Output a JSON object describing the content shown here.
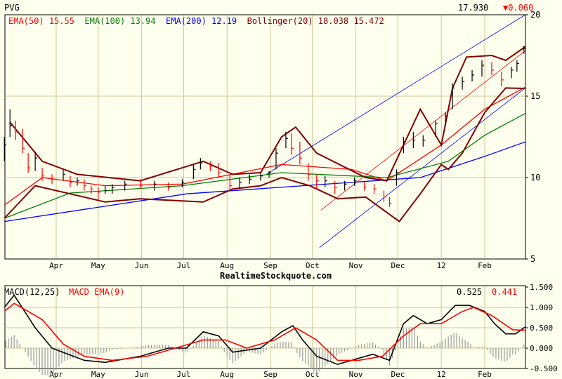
{
  "header": {
    "symbol": "PVG",
    "last_price": "17.930",
    "change": "▼0.060",
    "change_color": "#ff0000"
  },
  "legend": {
    "ema50_label": "EMA(50)",
    "ema50_value": "15.55",
    "ema100_label": "EMA(100)",
    "ema100_value": "13.94",
    "ema200_label": "EMA(200)",
    "ema200_value": "12.19",
    "boll_label": "Bollinger(20)",
    "boll_upper": "18.038",
    "boll_lower": "15.472"
  },
  "watermark": "RealtimeStockquote.com",
  "macd_legend": {
    "macd_label": "MACD(12,25)",
    "signal_label": "MACD EMA(9)",
    "macd_value": "0.525",
    "signal_value": "0.441"
  },
  "colors": {
    "ema50": "#ff0000",
    "ema100": "#008000",
    "ema200": "#0000ff",
    "bollinger": "#800000",
    "up_bar": "#000000",
    "down_bar": "#ff0000",
    "trend_channel": "#0000ff",
    "trend_mid": "#ff0000",
    "macd": "#000000",
    "signal": "#ff0000",
    "histogram": "#999999",
    "grid": "#c8c896"
  },
  "chart_data": [
    {
      "type": "ohlc",
      "title": "PVG",
      "y_axis": {
        "ticks": [
          5,
          10,
          15,
          20
        ],
        "ylim": [
          5,
          20
        ],
        "scale": "linear",
        "side": "right"
      },
      "x_axis": {
        "tick_labels": [
          "Apr",
          "May",
          "Jun",
          "Jul",
          "Aug",
          "Sep",
          "Oct",
          "Nov",
          "Dec",
          "12",
          "Feb"
        ],
        "tick_dates": [
          "2011-04-01",
          "2011-05-01",
          "2011-06-01",
          "2011-07-01",
          "2011-08-01",
          "2011-09-01",
          "2011-10-01",
          "2011-11-01",
          "2011-12-01",
          "2012-01-01",
          "2012-02-01"
        ],
        "range": [
          "2011-02-23",
          "2012-03-01"
        ]
      },
      "grid": true,
      "price_bars_date_high_low_close": [
        [
          "2011-02-23",
          12.5,
          11.0,
          12.0
        ],
        [
          "2011-02-27",
          14.2,
          12.5,
          13.2
        ],
        [
          "2011-03-03",
          13.5,
          12.3,
          12.8
        ],
        [
          "2011-03-08",
          13.0,
          11.5,
          11.8
        ],
        [
          "2011-03-12",
          11.5,
          10.3,
          10.6
        ],
        [
          "2011-03-17",
          11.6,
          10.4,
          11.2
        ],
        [
          "2011-03-22",
          10.6,
          9.8,
          10.1
        ],
        [
          "2011-03-29",
          10.2,
          9.6,
          9.9
        ],
        [
          "2011-04-06",
          10.5,
          9.8,
          10.2
        ],
        [
          "2011-04-11",
          10.1,
          9.4,
          9.7
        ],
        [
          "2011-04-16",
          10.0,
          9.5,
          9.8
        ],
        [
          "2011-04-21",
          9.9,
          9.2,
          9.5
        ],
        [
          "2011-04-26",
          9.5,
          9.0,
          9.3
        ],
        [
          "2011-05-01",
          9.4,
          8.6,
          9.1
        ],
        [
          "2011-05-06",
          9.5,
          9.0,
          9.2
        ],
        [
          "2011-05-11",
          9.6,
          9.0,
          9.4
        ],
        [
          "2011-05-20",
          9.8,
          9.2,
          9.6
        ],
        [
          "2011-05-31",
          9.9,
          9.3,
          9.5
        ],
        [
          "2011-06-10",
          9.8,
          9.2,
          9.6
        ],
        [
          "2011-06-20",
          9.7,
          9.2,
          9.4
        ],
        [
          "2011-06-30",
          9.9,
          9.4,
          9.7
        ],
        [
          "2011-07-08",
          10.8,
          9.9,
          10.5
        ],
        [
          "2011-07-13",
          11.2,
          10.5,
          10.9
        ],
        [
          "2011-07-20",
          11.0,
          10.4,
          10.7
        ],
        [
          "2011-07-26",
          10.9,
          10.0,
          10.3
        ],
        [
          "2011-08-03",
          10.2,
          9.3,
          9.5
        ],
        [
          "2011-08-10",
          10.0,
          9.3,
          9.7
        ],
        [
          "2011-08-17",
          10.2,
          9.6,
          9.9
        ],
        [
          "2011-08-25",
          10.3,
          9.8,
          10.1
        ],
        [
          "2011-08-31",
          10.4,
          10.0,
          10.3
        ],
        [
          "2011-09-05",
          11.8,
          10.5,
          11.5
        ],
        [
          "2011-09-12",
          12.8,
          11.8,
          12.4
        ],
        [
          "2011-09-16",
          12.7,
          11.4,
          11.8
        ],
        [
          "2011-09-22",
          12.2,
          10.8,
          11.2
        ],
        [
          "2011-09-28",
          10.9,
          9.8,
          10.2
        ],
        [
          "2011-10-04",
          10.2,
          9.3,
          9.8
        ],
        [
          "2011-10-10",
          10.1,
          9.4,
          9.8
        ],
        [
          "2011-10-17",
          9.8,
          9.0,
          9.4
        ],
        [
          "2011-10-24",
          9.8,
          9.2,
          9.6
        ],
        [
          "2011-10-31",
          10.0,
          9.5,
          9.8
        ],
        [
          "2011-11-07",
          9.8,
          9.2,
          9.4
        ],
        [
          "2011-11-14",
          9.6,
          9.0,
          9.3
        ],
        [
          "2011-11-21",
          9.2,
          8.5,
          8.8
        ],
        [
          "2011-11-25",
          8.8,
          8.2,
          8.4
        ],
        [
          "2011-11-30",
          10.5,
          9.5,
          10.3
        ],
        [
          "2011-12-05",
          12.5,
          11.5,
          12.2
        ],
        [
          "2011-12-12",
          12.8,
          11.8,
          12.3
        ],
        [
          "2011-12-19",
          12.6,
          11.9,
          12.3
        ],
        [
          "2011-12-28",
          13.5,
          12.5,
          13.3
        ],
        [
          "2012-01-04",
          14.0,
          13.2,
          13.8
        ],
        [
          "2012-01-09",
          15.8,
          14.2,
          15.5
        ],
        [
          "2012-01-16",
          16.2,
          15.4,
          15.9
        ],
        [
          "2012-01-23",
          16.6,
          15.9,
          16.3
        ],
        [
          "2012-01-30",
          17.2,
          16.2,
          16.9
        ],
        [
          "2012-02-06",
          17.1,
          16.3,
          16.6
        ],
        [
          "2012-02-13",
          16.5,
          15.6,
          16.0
        ],
        [
          "2012-02-20",
          16.8,
          16.1,
          16.6
        ],
        [
          "2012-02-24",
          17.2,
          16.5,
          17.0
        ],
        [
          "2012-02-29",
          18.1,
          17.6,
          17.93
        ]
      ],
      "series": [
        {
          "name": "EMA(50)",
          "color": "#ff0000",
          "points": [
            [
              "2011-02-23",
              8.3
            ],
            [
              "2011-03-22",
              10.0
            ],
            [
              "2011-05-06",
              9.5
            ],
            [
              "2011-06-30",
              9.6
            ],
            [
              "2011-09-09",
              10.8
            ],
            [
              "2011-10-29",
              10.5
            ],
            [
              "2011-11-23",
              9.8
            ],
            [
              "2012-01-01",
              12.0
            ],
            [
              "2012-02-01",
              14.2
            ],
            [
              "2012-03-01",
              15.55
            ]
          ]
        },
        {
          "name": "EMA(100)",
          "color": "#008000",
          "points": [
            [
              "2011-02-23",
              7.5
            ],
            [
              "2011-04-11",
              9.05
            ],
            [
              "2011-06-30",
              9.5
            ],
            [
              "2011-09-09",
              10.3
            ],
            [
              "2011-11-23",
              10.0
            ],
            [
              "2012-01-06",
              11.0
            ],
            [
              "2012-02-01",
              12.6
            ],
            [
              "2012-03-01",
              13.94
            ]
          ]
        },
        {
          "name": "EMA(200)",
          "color": "#0000ff",
          "points": [
            [
              "2011-02-23",
              7.3
            ],
            [
              "2011-07-03",
              9.0
            ],
            [
              "2011-12-17",
              10.0
            ],
            [
              "2012-02-01",
              11.3
            ],
            [
              "2012-03-01",
              12.19
            ]
          ]
        },
        {
          "name": "Bollinger(20) upper",
          "color": "#800000",
          "points": [
            [
              "2011-02-27",
              13.4
            ],
            [
              "2011-03-22",
              11.0
            ],
            [
              "2011-04-16",
              10.2
            ],
            [
              "2011-05-31",
              9.8
            ],
            [
              "2011-07-15",
              11.0
            ],
            [
              "2011-08-05",
              10.2
            ],
            [
              "2011-08-25",
              10.3
            ],
            [
              "2011-09-09",
              12.5
            ],
            [
              "2011-09-19",
              13.1
            ],
            [
              "2011-10-04",
              11.5
            ],
            [
              "2011-11-08",
              10.0
            ],
            [
              "2011-11-23",
              9.8
            ],
            [
              "2011-12-05",
              12.0
            ],
            [
              "2011-12-17",
              14.2
            ],
            [
              "2012-01-01",
              12.0
            ],
            [
              "2012-01-09",
              15.5
            ],
            [
              "2012-01-19",
              17.4
            ],
            [
              "2012-02-06",
              17.5
            ],
            [
              "2012-02-16",
              17.2
            ],
            [
              "2012-03-01",
              18.038
            ]
          ]
        },
        {
          "name": "Bollinger(20) lower",
          "color": "#800000",
          "points": [
            [
              "2011-02-23",
              7.5
            ],
            [
              "2011-03-17",
              9.5
            ],
            [
              "2011-04-11",
              9.0
            ],
            [
              "2011-05-06",
              8.5
            ],
            [
              "2011-05-31",
              8.7
            ],
            [
              "2011-07-15",
              8.5
            ],
            [
              "2011-08-05",
              9.3
            ],
            [
              "2011-08-25",
              9.5
            ],
            [
              "2011-09-09",
              10.0
            ],
            [
              "2011-09-29",
              9.5
            ],
            [
              "2011-10-19",
              8.7
            ],
            [
              "2011-11-08",
              8.8
            ],
            [
              "2011-12-02",
              7.3
            ],
            [
              "2011-12-17",
              9.0
            ],
            [
              "2012-01-01",
              10.8
            ],
            [
              "2012-01-06",
              10.5
            ],
            [
              "2012-01-16",
              11.5
            ],
            [
              "2012-02-01",
              14.0
            ],
            [
              "2012-02-16",
              15.5
            ],
            [
              "2012-03-01",
              15.472
            ]
          ]
        }
      ],
      "trend_lines": [
        {
          "color": "#0000ff",
          "from": [
            "2011-08-29",
            10.2
          ],
          "to": [
            "2012-03-01",
            20.0
          ]
        },
        {
          "color": "#0000ff",
          "from": [
            "2011-10-06",
            5.7
          ],
          "to": [
            "2012-03-01",
            15.5
          ]
        },
        {
          "color": "#ff0000",
          "from": [
            "2011-10-07",
            8.0
          ],
          "to": [
            "2012-03-01",
            17.8
          ]
        }
      ]
    },
    {
      "type": "line",
      "title": "MACD(12,25)",
      "y_axis": {
        "ticks": [
          1.5,
          1.0,
          0.5,
          0.0,
          -0.5
        ],
        "tick_labels": [
          "1.500",
          "1.000",
          "0.500",
          "0.000",
          "-0.500"
        ],
        "ylim": [
          -0.5,
          1.5
        ],
        "side": "right"
      },
      "histogram": "MACD minus signal",
      "series": [
        {
          "name": "MACD(12,25)",
          "color": "#000000",
          "points": [
            [
              "2011-02-23",
              1.0
            ],
            [
              "2011-03-02",
              1.3
            ],
            [
              "2011-03-17",
              0.5
            ],
            [
              "2011-03-29",
              0.0
            ],
            [
              "2011-04-21",
              -0.3
            ],
            [
              "2011-05-06",
              -0.35
            ],
            [
              "2011-05-31",
              -0.2
            ],
            [
              "2011-06-20",
              0.0
            ],
            [
              "2011-07-03",
              0.0
            ],
            [
              "2011-07-15",
              0.4
            ],
            [
              "2011-07-26",
              0.3
            ],
            [
              "2011-08-05",
              -0.1
            ],
            [
              "2011-08-25",
              0.0
            ],
            [
              "2011-09-09",
              0.4
            ],
            [
              "2011-09-17",
              0.55
            ],
            [
              "2011-09-24",
              0.2
            ],
            [
              "2011-10-04",
              -0.2
            ],
            [
              "2011-10-19",
              -0.4
            ],
            [
              "2011-10-29",
              -0.3
            ],
            [
              "2011-11-13",
              -0.15
            ],
            [
              "2011-11-25",
              -0.3
            ],
            [
              "2011-12-05",
              0.6
            ],
            [
              "2011-12-12",
              0.8
            ],
            [
              "2011-12-22",
              0.6
            ],
            [
              "2012-01-01",
              0.7
            ],
            [
              "2012-01-11",
              1.05
            ],
            [
              "2012-01-21",
              1.05
            ],
            [
              "2012-02-01",
              0.9
            ],
            [
              "2012-02-08",
              0.6
            ],
            [
              "2012-02-16",
              0.35
            ],
            [
              "2012-02-23",
              0.35
            ],
            [
              "2012-03-01",
              0.525
            ]
          ]
        },
        {
          "name": "MACD EMA(9)",
          "color": "#ff0000",
          "points": [
            [
              "2011-02-23",
              0.9
            ],
            [
              "2011-03-02",
              1.1
            ],
            [
              "2011-03-22",
              0.7
            ],
            [
              "2011-04-06",
              0.1
            ],
            [
              "2011-04-21",
              -0.2
            ],
            [
              "2011-05-11",
              -0.3
            ],
            [
              "2011-06-05",
              -0.2
            ],
            [
              "2011-06-25",
              0.0
            ],
            [
              "2011-07-15",
              0.2
            ],
            [
              "2011-07-31",
              0.2
            ],
            [
              "2011-08-15",
              0.0
            ],
            [
              "2011-09-04",
              0.2
            ],
            [
              "2011-09-19",
              0.5
            ],
            [
              "2011-10-04",
              0.2
            ],
            [
              "2011-10-19",
              -0.3
            ],
            [
              "2011-11-03",
              -0.3
            ],
            [
              "2011-11-20",
              -0.2
            ],
            [
              "2011-12-05",
              0.3
            ],
            [
              "2011-12-17",
              0.6
            ],
            [
              "2012-01-01",
              0.6
            ],
            [
              "2012-01-16",
              0.9
            ],
            [
              "2012-01-24",
              1.0
            ],
            [
              "2012-02-06",
              0.8
            ],
            [
              "2012-02-21",
              0.45
            ],
            [
              "2012-03-01",
              0.441
            ]
          ]
        }
      ]
    }
  ]
}
